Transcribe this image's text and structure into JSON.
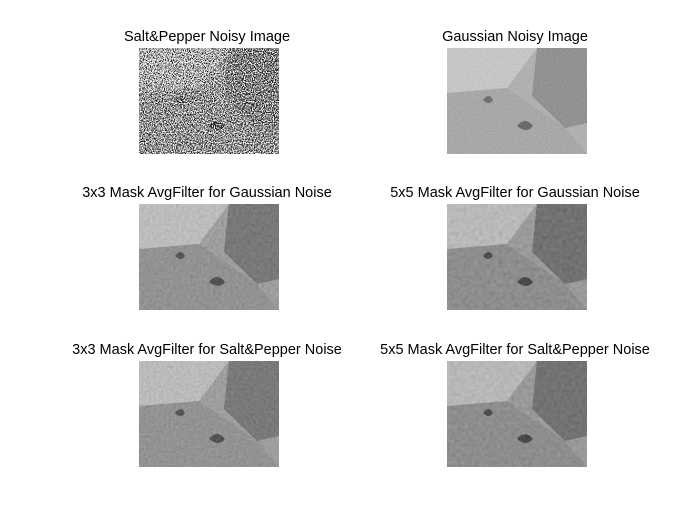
{
  "figure": {
    "panels": [
      {
        "title": "Salt&Pepper Noisy Image",
        "noise": "salt-pepper"
      },
      {
        "title": "Gaussian Noisy Image",
        "noise": "gaussian"
      },
      {
        "title": "3x3 Mask AvgFilter for Gaussian Noise",
        "noise": "smooth"
      },
      {
        "title": "5x5 Mask AvgFilter for Gaussian Noise",
        "noise": "smooth"
      },
      {
        "title": "3x3 Mask AvgFilter for Salt&Pepper Noise",
        "noise": "smooth"
      },
      {
        "title": "5x5 Mask AvgFilter for Salt&Pepper Noise",
        "noise": "smooth"
      }
    ]
  }
}
